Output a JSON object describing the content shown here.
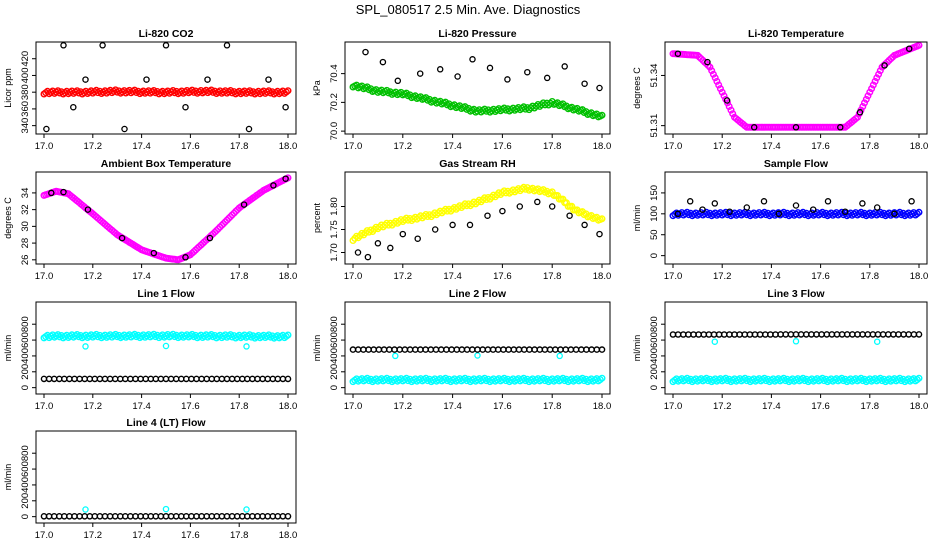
{
  "page_title": "SPL_080517  2.5 Min. Ave. Diagnostics",
  "colors": {
    "black": "#000000",
    "red": "#ff0000",
    "green": "#00c000",
    "magenta": "#ff00ff",
    "yellow": "#ffff00",
    "blue": "#0000ff",
    "cyan": "#00ffff"
  },
  "chart_data": [
    {
      "type": "scatter",
      "title": "Li-820 CO2",
      "ylabel": "Licor ppm",
      "xlabel": "",
      "xlim": [
        17.0,
        18.0
      ],
      "ylim": [
        330,
        440
      ],
      "x_ticks": [
        17.0,
        17.2,
        17.4,
        17.6,
        17.8,
        18.0
      ],
      "x_tick_labels": [
        "17.0",
        "17.2",
        "17.4",
        "17.6",
        "17.8",
        "18.0"
      ],
      "y_ticks": [
        340,
        360,
        380,
        400,
        420
      ],
      "y_tick_labels": [
        "340",
        "360",
        "380",
        "400",
        "420"
      ],
      "series": [
        {
          "color": "#ff0000",
          "style": "band",
          "x": [
            17.0,
            17.15,
            17.3,
            17.5,
            17.65,
            17.8,
            18.0
          ],
          "y": [
            380,
            380,
            381,
            380,
            381,
            380,
            380
          ]
        },
        {
          "color": "#000000",
          "style": "points",
          "x": [
            17.01,
            17.08,
            17.12,
            17.17,
            17.24,
            17.33,
            17.42,
            17.5,
            17.58,
            17.67,
            17.75,
            17.84,
            17.92,
            17.99
          ],
          "y": [
            336,
            436,
            362,
            395,
            436,
            336,
            395,
            436,
            362,
            395,
            436,
            336,
            395,
            362
          ]
        }
      ]
    },
    {
      "type": "scatter",
      "title": "Li-820 Pressure",
      "ylabel": "kPa",
      "xlabel": "",
      "xlim": [
        17.0,
        18.0
      ],
      "ylim": [
        69.98,
        70.62
      ],
      "x_ticks": [
        17.0,
        17.2,
        17.4,
        17.6,
        17.8,
        18.0
      ],
      "x_tick_labels": [
        "17.0",
        "17.2",
        "17.4",
        "17.6",
        "17.8",
        "18.0"
      ],
      "y_ticks": [
        70.0,
        70.2,
        70.4
      ],
      "y_tick_labels": [
        "70.0",
        "70.2",
        "70.4"
      ],
      "series": [
        {
          "color": "#00c000",
          "style": "band",
          "x": [
            17.0,
            17.1,
            17.2,
            17.3,
            17.4,
            17.5,
            17.6,
            17.7,
            17.8,
            17.9,
            18.0
          ],
          "y": [
            70.32,
            70.28,
            70.26,
            70.22,
            70.18,
            70.14,
            70.15,
            70.16,
            70.2,
            70.15,
            70.1
          ]
        },
        {
          "color": "#000000",
          "style": "points",
          "x": [
            17.05,
            17.12,
            17.18,
            17.27,
            17.35,
            17.42,
            17.48,
            17.55,
            17.62,
            17.7,
            17.78,
            17.85,
            17.93,
            17.99
          ],
          "y": [
            70.55,
            70.48,
            70.35,
            70.4,
            70.43,
            70.38,
            70.5,
            70.44,
            70.36,
            70.41,
            70.37,
            70.45,
            70.33,
            70.3
          ]
        }
      ]
    },
    {
      "type": "scatter",
      "title": "Li-820 Temperature",
      "ylabel": "degrees C",
      "xlabel": "",
      "xlim": [
        17.0,
        18.0
      ],
      "ylim": [
        51.305,
        51.36
      ],
      "x_ticks": [
        17.0,
        17.2,
        17.4,
        17.6,
        17.8,
        18.0
      ],
      "x_tick_labels": [
        "17.0",
        "17.2",
        "17.4",
        "17.6",
        "17.8",
        "18.0"
      ],
      "y_ticks": [
        51.31,
        51.34
      ],
      "y_tick_labels": [
        "51.31",
        "51.34"
      ],
      "series": [
        {
          "color": "#ff00ff",
          "style": "curve",
          "x": [
            17.0,
            17.1,
            17.15,
            17.2,
            17.25,
            17.3,
            17.4,
            17.5,
            17.6,
            17.7,
            17.75,
            17.8,
            17.85,
            17.9,
            18.0
          ],
          "y": [
            51.353,
            51.352,
            51.345,
            51.33,
            51.315,
            51.309,
            51.309,
            51.309,
            51.309,
            51.309,
            51.315,
            51.33,
            51.345,
            51.352,
            51.358
          ]
        },
        {
          "color": "#000000",
          "style": "points",
          "x": [
            17.02,
            17.14,
            17.22,
            17.33,
            17.5,
            17.68,
            17.76,
            17.86,
            17.96
          ],
          "y": [
            51.353,
            51.348,
            51.325,
            51.309,
            51.309,
            51.309,
            51.318,
            51.346,
            51.356
          ]
        }
      ]
    },
    {
      "type": "scatter",
      "title": "Ambient Box Temperature",
      "ylabel": "degrees C",
      "xlabel": "",
      "xlim": [
        17.0,
        18.0
      ],
      "ylim": [
        25.5,
        36.5
      ],
      "x_ticks": [
        17.0,
        17.2,
        17.4,
        17.6,
        17.8,
        18.0
      ],
      "x_tick_labels": [
        "17.0",
        "17.2",
        "17.4",
        "17.6",
        "17.8",
        "18.0"
      ],
      "y_ticks": [
        26,
        28,
        30,
        32,
        34
      ],
      "y_tick_labels": [
        "26",
        "28",
        "30",
        "32",
        "34"
      ],
      "series": [
        {
          "color": "#ff00ff",
          "style": "curve",
          "x": [
            17.0,
            17.05,
            17.1,
            17.2,
            17.3,
            17.4,
            17.5,
            17.55,
            17.6,
            17.7,
            17.8,
            17.9,
            18.0
          ],
          "y": [
            33.7,
            34.2,
            33.9,
            31.5,
            29.0,
            27.2,
            26.2,
            26.0,
            26.6,
            29.3,
            32.2,
            34.3,
            35.8
          ]
        },
        {
          "color": "#000000",
          "style": "points",
          "x": [
            17.03,
            17.08,
            17.18,
            17.32,
            17.45,
            17.58,
            17.68,
            17.82,
            17.94,
            17.99
          ],
          "y": [
            34.0,
            34.1,
            32.0,
            28.6,
            26.8,
            26.3,
            28.6,
            32.6,
            34.9,
            35.7
          ]
        }
      ]
    },
    {
      "type": "scatter",
      "title": "Gas Stream RH",
      "ylabel": "percent",
      "xlabel": "",
      "xlim": [
        17.0,
        18.0
      ],
      "ylim": [
        1.675,
        1.875
      ],
      "x_ticks": [
        17.0,
        17.2,
        17.4,
        17.6,
        17.8,
        18.0
      ],
      "x_tick_labels": [
        "17.0",
        "17.2",
        "17.4",
        "17.6",
        "17.8",
        "18.0"
      ],
      "y_ticks": [
        1.7,
        1.75,
        1.8
      ],
      "y_tick_labels": [
        "1.70",
        "1.75",
        "1.80"
      ],
      "series": [
        {
          "color": "#ffff00",
          "style": "band",
          "x": [
            17.0,
            17.1,
            17.2,
            17.3,
            17.4,
            17.5,
            17.6,
            17.7,
            17.8,
            17.9,
            18.0
          ],
          "y": [
            1.73,
            1.755,
            1.77,
            1.78,
            1.795,
            1.81,
            1.83,
            1.84,
            1.83,
            1.79,
            1.77
          ]
        },
        {
          "color": "#000000",
          "style": "points",
          "x": [
            17.02,
            17.06,
            17.1,
            17.15,
            17.2,
            17.26,
            17.33,
            17.4,
            17.47,
            17.54,
            17.6,
            17.67,
            17.74,
            17.8,
            17.87,
            17.93,
            17.99
          ],
          "y": [
            1.7,
            1.69,
            1.72,
            1.71,
            1.74,
            1.73,
            1.75,
            1.76,
            1.76,
            1.78,
            1.79,
            1.8,
            1.81,
            1.8,
            1.78,
            1.76,
            1.74
          ]
        }
      ]
    },
    {
      "type": "scatter",
      "title": "Sample Flow",
      "ylabel": "ml/min",
      "xlabel": "",
      "xlim": [
        17.0,
        18.0
      ],
      "ylim": [
        -20,
        200
      ],
      "x_ticks": [
        17.0,
        17.2,
        17.4,
        17.6,
        17.8,
        18.0
      ],
      "x_tick_labels": [
        "17.0",
        "17.2",
        "17.4",
        "17.6",
        "17.8",
        "18.0"
      ],
      "y_ticks": [
        0,
        50,
        100,
        150
      ],
      "y_tick_labels": [
        "0",
        "50",
        "100",
        "150"
      ],
      "series": [
        {
          "color": "#0000ff",
          "style": "band",
          "x": [
            17.0,
            18.0
          ],
          "y": [
            100,
            100
          ]
        },
        {
          "color": "#000000",
          "style": "points",
          "x": [
            17.02,
            17.07,
            17.12,
            17.17,
            17.23,
            17.3,
            17.37,
            17.43,
            17.5,
            17.57,
            17.63,
            17.7,
            17.77,
            17.83,
            17.9,
            17.97
          ],
          "y": [
            100,
            130,
            110,
            125,
            105,
            115,
            130,
            100,
            120,
            110,
            130,
            105,
            125,
            115,
            100,
            130
          ]
        }
      ]
    },
    {
      "type": "scatter",
      "title": "Line 1 Flow",
      "ylabel": "ml/min",
      "xlabel": "",
      "xlim": [
        17.0,
        18.0
      ],
      "ylim": [
        -80,
        1080
      ],
      "x_ticks": [
        17.0,
        17.2,
        17.4,
        17.6,
        17.8,
        18.0
      ],
      "x_tick_labels": [
        "17.0",
        "17.2",
        "17.4",
        "17.6",
        "17.8",
        "18.0"
      ],
      "y_ticks": [
        0,
        200,
        400,
        600,
        800
      ],
      "y_tick_labels": [
        "0",
        "200",
        "400",
        "600",
        "800"
      ],
      "series": [
        {
          "color": "#00ffff",
          "style": "band",
          "x": [
            17.0,
            17.5,
            18.0
          ],
          "y": [
            650,
            655,
            645
          ]
        },
        {
          "color": "#00ffff",
          "style": "points",
          "x": [
            17.17,
            17.5,
            17.83
          ],
          "y": [
            520,
            525,
            520
          ]
        },
        {
          "color": "#000000",
          "style": "dense",
          "x": [
            17.0,
            18.0
          ],
          "y": [
            110,
            110
          ]
        }
      ]
    },
    {
      "type": "scatter",
      "title": "Line 2 Flow",
      "ylabel": "ml/min",
      "xlabel": "",
      "xlim": [
        17.0,
        18.0
      ],
      "ylim": [
        -80,
        1080
      ],
      "x_ticks": [
        17.0,
        17.2,
        17.4,
        17.6,
        17.8,
        18.0
      ],
      "x_tick_labels": [
        "17.0",
        "17.2",
        "17.4",
        "17.6",
        "17.8",
        "18.0"
      ],
      "y_ticks": [
        0,
        200,
        400,
        600,
        800
      ],
      "y_tick_labels": [
        "0",
        "200",
        "400",
        "600",
        "800"
      ],
      "series": [
        {
          "color": "#00ffff",
          "style": "band",
          "x": [
            17.0,
            18.0
          ],
          "y": [
            100,
            100
          ]
        },
        {
          "color": "#00ffff",
          "style": "points",
          "x": [
            17.17,
            17.5,
            17.83
          ],
          "y": [
            400,
            405,
            400
          ]
        },
        {
          "color": "#000000",
          "style": "dense",
          "x": [
            17.0,
            18.0
          ],
          "y": [
            480,
            480
          ]
        }
      ]
    },
    {
      "type": "scatter",
      "title": "Line 3 Flow",
      "ylabel": "ml/min",
      "xlabel": "",
      "xlim": [
        17.0,
        18.0
      ],
      "ylim": [
        -80,
        1080
      ],
      "x_ticks": [
        17.0,
        17.2,
        17.4,
        17.6,
        17.8,
        18.0
      ],
      "x_tick_labels": [
        "17.0",
        "17.2",
        "17.4",
        "17.6",
        "17.8",
        "18.0"
      ],
      "y_ticks": [
        0,
        200,
        400,
        600,
        800
      ],
      "y_tick_labels": [
        "0",
        "200",
        "400",
        "600",
        "800"
      ],
      "series": [
        {
          "color": "#00ffff",
          "style": "band",
          "x": [
            17.0,
            18.0
          ],
          "y": [
            100,
            100
          ]
        },
        {
          "color": "#00ffff",
          "style": "points",
          "x": [
            17.17,
            17.5,
            17.83
          ],
          "y": [
            580,
            585,
            580
          ]
        },
        {
          "color": "#000000",
          "style": "dense",
          "x": [
            17.0,
            18.0
          ],
          "y": [
            670,
            672
          ]
        }
      ]
    },
    {
      "type": "scatter",
      "title": "Line 4 (LT) Flow",
      "ylabel": "ml/min",
      "xlabel": "",
      "xlim": [
        17.0,
        18.0
      ],
      "ylim": [
        -80,
        1080
      ],
      "x_ticks": [
        17.0,
        17.2,
        17.4,
        17.6,
        17.8,
        18.0
      ],
      "x_tick_labels": [
        "17.0",
        "17.2",
        "17.4",
        "17.6",
        "17.8",
        "18.0"
      ],
      "y_ticks": [
        0,
        200,
        400,
        600,
        800
      ],
      "y_tick_labels": [
        "0",
        "200",
        "400",
        "600",
        "800"
      ],
      "series": [
        {
          "color": "#00ffff",
          "style": "points",
          "x": [
            17.17,
            17.5,
            17.83
          ],
          "y": [
            90,
            95,
            90
          ]
        },
        {
          "color": "#000000",
          "style": "dense",
          "x": [
            17.0,
            18.0
          ],
          "y": [
            5,
            5
          ]
        }
      ]
    }
  ]
}
